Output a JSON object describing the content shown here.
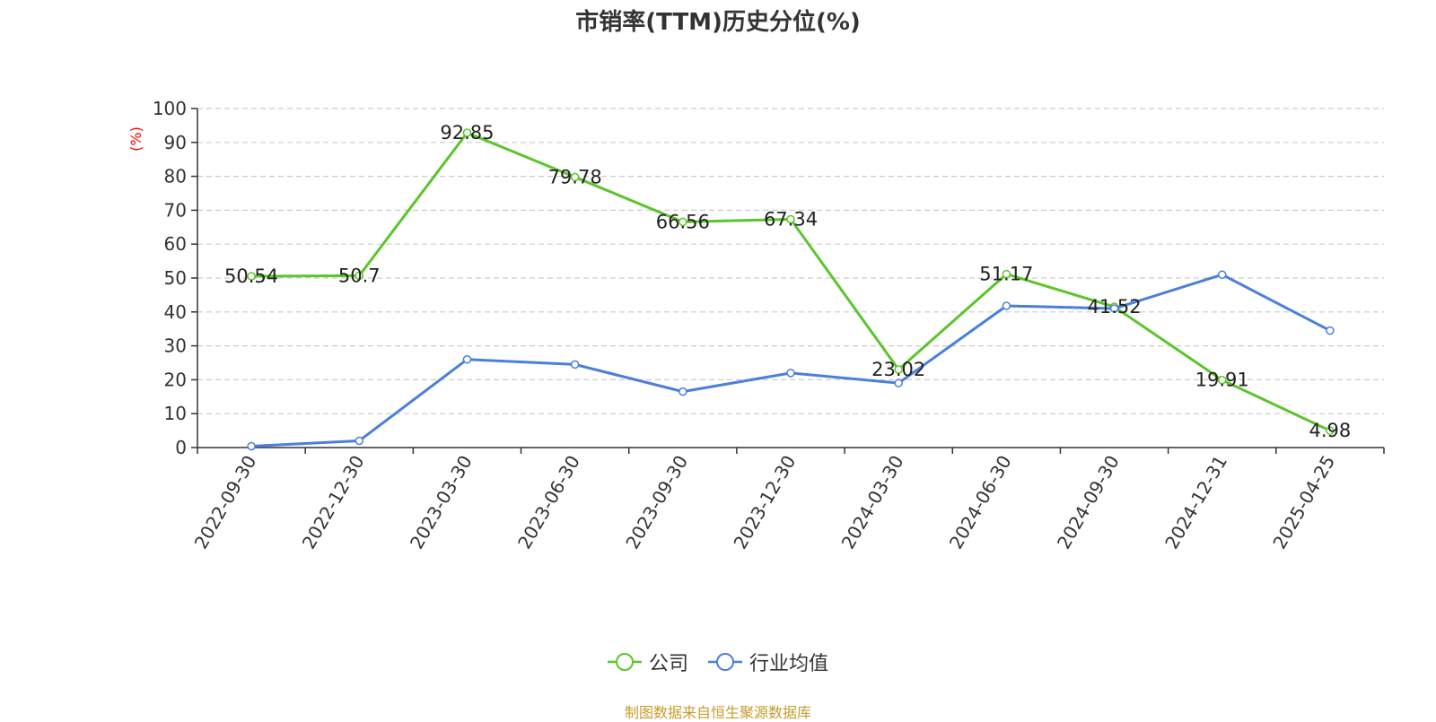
{
  "chart_data": {
    "type": "line",
    "title": "市销率(TTM)历史分位(%)",
    "ylabel": "(%)",
    "xlabel": "",
    "categories": [
      "2022-09-30",
      "2022-12-30",
      "2023-03-30",
      "2023-06-30",
      "2023-09-30",
      "2023-12-30",
      "2024-03-30",
      "2024-06-30",
      "2024-09-30",
      "2024-12-31",
      "2025-04-25"
    ],
    "ylim": [
      0,
      100
    ],
    "yticks": [
      0,
      10,
      20,
      30,
      40,
      50,
      60,
      70,
      80,
      90,
      100
    ],
    "grid": true,
    "legend_position": "bottom-center",
    "series": [
      {
        "name": "公司",
        "color": "#5bc52b",
        "show_labels": true,
        "values": [
          50.54,
          50.7,
          92.85,
          79.78,
          66.56,
          67.34,
          23.02,
          51.17,
          41.52,
          19.91,
          4.98
        ],
        "labels": [
          "50.54",
          "50.7",
          "92.85",
          "79.78",
          "66.56",
          "67.34",
          "23.02",
          "51.17",
          "41.52",
          "19.91",
          "4.98"
        ]
      },
      {
        "name": "行业均值",
        "color": "#4a7fdd",
        "show_labels": false,
        "values": [
          0.4,
          2.0,
          26.0,
          24.5,
          16.5,
          22.0,
          19.0,
          41.8,
          41.0,
          51.0,
          34.5
        ]
      }
    ]
  },
  "source_note": "制图数据来自恒生聚源数据库",
  "colors": {
    "axis": "#333333",
    "grid": "#cccccc",
    "ylabel": "#ff0000",
    "source": "#c69c2c"
  }
}
